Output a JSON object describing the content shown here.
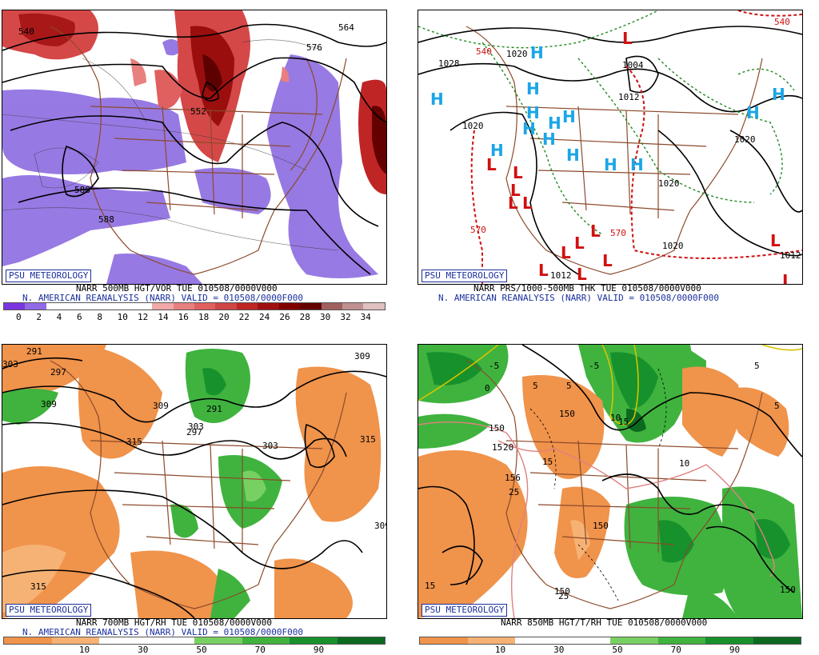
{
  "badge_text": "PSU METEOROLOGY",
  "panels": [
    {
      "caption_line1": "NARR 500MB HGT/VOR TUE 010508/0000V000",
      "caption_line2": "N. AMERICAN REANALYSIS (NARR) VALID = 010508/0000F000",
      "colorbar_labels": [
        "0",
        "2",
        "4",
        "6",
        "8",
        "10",
        "12",
        "14",
        "16",
        "18",
        "20",
        "22",
        "24",
        "26",
        "28",
        "30",
        "32",
        "34"
      ],
      "colorbar_colors": [
        "#7a35e0",
        "#9169e6",
        "#ffffff",
        "#ffffff",
        "#ffffff",
        "#ffffff",
        "#ffffff",
        "#f0a8a8",
        "#e88080",
        "#e06060",
        "#d04545",
        "#c02525",
        "#a01010",
        "#800000",
        "#640000",
        "#a06060",
        "#c09090",
        "#e0c0c0"
      ],
      "contour_labels": [
        "540",
        "552",
        "576",
        "588",
        "588",
        "564"
      ]
    },
    {
      "caption_line1": "NARR PRS/1000-500MB THK TUE 010508/0000V000",
      "caption_line2": "N. AMERICAN REANALYSIS (NARR) VALID = 010508/0000F000",
      "contour_labels": [
        "1028",
        "1020",
        "1020",
        "1012",
        "1012",
        "1020",
        "1020",
        "1020",
        "1004",
        "1012",
        "540",
        "570",
        "570",
        "540"
      ],
      "high_symbol": "H",
      "low_symbol": "L"
    },
    {
      "caption_line1": "NARR 700MB HGT/RH TUE 010508/0000V000",
      "caption_line2": "N. AMERICAN REANALYSIS (NARR) VALID = 010508/0000F000",
      "colorbar_labels": [
        "10",
        "30",
        "50",
        "70",
        "90"
      ],
      "colorbar_colors": [
        "#f0934b",
        "#f5b274",
        "#ffffff",
        "#ffffff",
        "#79d062",
        "#3fb33e",
        "#17912b",
        "#0c6a20"
      ],
      "contour_labels": [
        "291",
        "297",
        "303",
        "309",
        "309",
        "315",
        "303",
        "291",
        "297",
        "303",
        "309",
        "315",
        "309",
        "315"
      ]
    },
    {
      "caption_line1": "NARR 850MB HGT/T/RH TUE 010508/0000V000",
      "colorbar_labels": [
        "10",
        "30",
        "50",
        "70",
        "90"
      ],
      "colorbar_colors": [
        "#f0934b",
        "#f5b274",
        "#ffffff",
        "#ffffff",
        "#79d062",
        "#3fb33e",
        "#17912b",
        "#0c6a20"
      ],
      "contour_labels": [
        "-5",
        "-5",
        "5",
        "5",
        "5",
        "0",
        "5",
        "10",
        "15",
        "20",
        "15",
        "25",
        "25",
        "15",
        "150",
        "150",
        "156",
        "150",
        "150",
        "150",
        "10",
        "15"
      ]
    }
  ]
}
